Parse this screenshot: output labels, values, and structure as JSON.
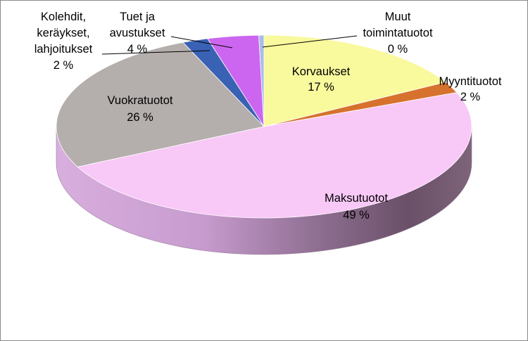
{
  "chart_data": {
    "type": "pie",
    "title": "",
    "labels_in_chart": true,
    "slices": [
      {
        "name": "Korvaukset",
        "label_lines": [
          "Korvaukset",
          "17 %"
        ],
        "value": 17,
        "pct_label": "17 %",
        "color": "#f9f99d"
      },
      {
        "name": "Myyntituotot",
        "label_lines": [
          "Myyntituotot",
          "2 %"
        ],
        "value": 2,
        "pct_label": "2 %",
        "color": "#d6722e"
      },
      {
        "name": "Maksutuotot",
        "label_lines": [
          "Maksutuotot",
          "49 %"
        ],
        "value": 49,
        "pct_label": "49 %",
        "color": "#f8c8f7"
      },
      {
        "name": "Vuokratuotot",
        "label_lines": [
          "Vuokratuotot",
          "26 %"
        ],
        "value": 26,
        "pct_label": "26 %",
        "color": "#b4aeac"
      },
      {
        "name": "Kolehdit, keräykset, lahjoitukset",
        "label_lines": [
          "Kolehdit,",
          "keräykset,",
          "lahjoitukset",
          "2 %"
        ],
        "value": 2,
        "pct_label": "2 %",
        "color": "#3a62b4"
      },
      {
        "name": "Tuet ja avustukset",
        "label_lines": [
          "Tuet ja",
          "avustukset",
          "4 %"
        ],
        "value": 4,
        "pct_label": "4 %",
        "color": "#cc66f0"
      },
      {
        "name": "Muut toimintatuotot",
        "label_lines": [
          "Muut",
          "toimintatuotot",
          "0 %"
        ],
        "value": 0.4,
        "pct_label": "0 %",
        "color": "#a9bde4"
      }
    ]
  }
}
